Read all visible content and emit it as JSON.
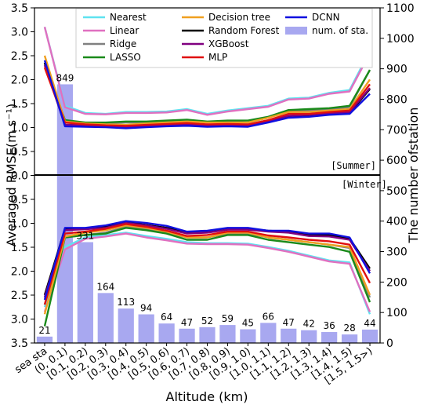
{
  "chart_data": {
    "type": "line",
    "categories": [
      "sea_sta",
      "(0, 0.1)",
      "[0.1, 0.2)",
      "[0.2, 0.3)",
      "[0.3, 0.4)",
      "[0.4, 0.5)",
      "[0.5, 0.6)",
      "[0.6, 0.7)",
      "[0.7, 0.8)",
      "[0.8, 0.9)",
      "[0.9, 1.0)",
      "[1.0, 1.1)",
      "[1.1, 1.2)",
      "[1.2, 1.3)",
      "[1.3, 1.4)",
      "[1.4, 1.5)",
      "[1.5, 1.5>)"
    ],
    "xlabel": "Altitude (km)",
    "ylabel": "Averaged RMSE(m s⁻¹)",
    "y2label": "The number ofstation",
    "summer_label": "[Summer]",
    "winter_label": "[Winter]",
    "rmse_ticks": [
      "3.5",
      "3.0",
      "2.5",
      "2.0",
      "1.5",
      "1.0",
      "0.5",
      "0.0",
      "0.5",
      "1.0",
      "1.5",
      "2.0",
      "2.5",
      "3.0",
      "3.5"
    ],
    "station_ticks": [
      "0",
      "100",
      "200",
      "300",
      "400",
      "500",
      "600",
      "700",
      "800",
      "900",
      "1000",
      "1100"
    ],
    "ylim_rmse": [
      0,
      3.5
    ],
    "ylim_stations": [
      0,
      1100
    ],
    "legend_position": "top",
    "stations": {
      "name": "num. of sta.",
      "color": "#a8a8f0",
      "values": [
        21,
        849,
        331,
        164,
        113,
        94,
        64,
        47,
        52,
        59,
        45,
        66,
        47,
        42,
        36,
        28,
        44
      ]
    },
    "summer": [
      {
        "name": "Nearest",
        "color": "#5fe3f0",
        "values": [
          3.1,
          1.45,
          1.3,
          1.28,
          1.32,
          1.32,
          1.33,
          1.38,
          1.28,
          1.35,
          1.4,
          1.45,
          1.6,
          1.62,
          1.72,
          1.78,
          2.6
        ]
      },
      {
        "name": "Linear",
        "color": "#e070c0",
        "values": [
          3.1,
          1.42,
          1.28,
          1.27,
          1.3,
          1.3,
          1.31,
          1.36,
          1.26,
          1.33,
          1.38,
          1.43,
          1.58,
          1.6,
          1.7,
          1.75,
          2.55
        ]
      },
      {
        "name": "Ridge",
        "color": "#808080",
        "values": [
          2.35,
          1.1,
          1.08,
          1.08,
          1.1,
          1.1,
          1.12,
          1.15,
          1.1,
          1.12,
          1.1,
          1.2,
          1.35,
          1.35,
          1.38,
          1.42,
          2.2
        ]
      },
      {
        "name": "LASSO",
        "color": "#1a8a1a",
        "values": [
          2.35,
          1.15,
          1.1,
          1.1,
          1.12,
          1.12,
          1.14,
          1.16,
          1.12,
          1.14,
          1.14,
          1.22,
          1.36,
          1.38,
          1.4,
          1.45,
          2.2
        ]
      },
      {
        "name": "Decision tree",
        "color": "#f0a020",
        "values": [
          2.5,
          1.12,
          1.08,
          1.06,
          1.05,
          1.08,
          1.1,
          1.12,
          1.1,
          1.1,
          1.1,
          1.2,
          1.32,
          1.32,
          1.35,
          1.38,
          2.0
        ]
      },
      {
        "name": "Random Forest",
        "color": "#000000",
        "values": [
          2.35,
          1.05,
          1.04,
          1.02,
          1.0,
          1.02,
          1.04,
          1.05,
          1.03,
          1.04,
          1.03,
          1.12,
          1.22,
          1.24,
          1.28,
          1.3,
          1.8
        ]
      },
      {
        "name": "XGBoost",
        "color": "#800080",
        "values": [
          2.3,
          1.05,
          1.04,
          1.03,
          1.01,
          1.03,
          1.05,
          1.06,
          1.04,
          1.05,
          1.04,
          1.13,
          1.24,
          1.26,
          1.29,
          1.32,
          1.82
        ]
      },
      {
        "name": "MLP",
        "color": "#e01010",
        "values": [
          2.25,
          1.1,
          1.06,
          1.04,
          1.03,
          1.05,
          1.07,
          1.09,
          1.06,
          1.07,
          1.06,
          1.15,
          1.28,
          1.28,
          1.32,
          1.35,
          1.9
        ]
      },
      {
        "name": "DCNN",
        "color": "#1010e0",
        "values": [
          2.4,
          1.02,
          1.01,
          1.0,
          0.98,
          1.0,
          1.02,
          1.03,
          1.01,
          1.02,
          1.01,
          1.1,
          1.2,
          1.22,
          1.26,
          1.28,
          1.7
        ]
      }
    ],
    "winter": [
      {
        "name": "Nearest",
        "color": "#5fe3f0",
        "values": [
          2.75,
          1.5,
          1.3,
          1.25,
          1.2,
          1.27,
          1.33,
          1.4,
          1.42,
          1.42,
          1.43,
          1.5,
          1.58,
          1.68,
          1.78,
          1.82,
          2.9
        ]
      },
      {
        "name": "Linear",
        "color": "#e070c0",
        "values": [
          2.85,
          1.55,
          1.33,
          1.28,
          1.22,
          1.3,
          1.36,
          1.43,
          1.44,
          1.44,
          1.45,
          1.52,
          1.6,
          1.7,
          1.8,
          1.85,
          2.85
        ]
      },
      {
        "name": "Ridge",
        "color": "#808080",
        "values": [
          2.7,
          1.3,
          1.25,
          1.2,
          1.08,
          1.12,
          1.2,
          1.3,
          1.3,
          1.22,
          1.22,
          1.3,
          1.35,
          1.4,
          1.45,
          1.52,
          2.55
        ]
      },
      {
        "name": "LASSO",
        "color": "#1a8a1a",
        "values": [
          3.15,
          1.3,
          1.25,
          1.22,
          1.1,
          1.15,
          1.22,
          1.35,
          1.35,
          1.25,
          1.25,
          1.35,
          1.4,
          1.45,
          1.5,
          1.6,
          2.65
        ]
      },
      {
        "name": "Decision tree",
        "color": "#f0a020",
        "values": [
          2.9,
          1.28,
          1.2,
          1.15,
          1.05,
          1.1,
          1.18,
          1.3,
          1.3,
          1.2,
          1.2,
          1.3,
          1.35,
          1.4,
          1.45,
          1.5,
          2.5
        ]
      },
      {
        "name": "Random Forest",
        "color": "#000000",
        "values": [
          2.5,
          1.12,
          1.12,
          1.08,
          0.98,
          1.04,
          1.1,
          1.2,
          1.18,
          1.12,
          1.12,
          1.16,
          1.18,
          1.25,
          1.25,
          1.32,
          1.95
        ]
      },
      {
        "name": "XGBoost",
        "color": "#800080",
        "values": [
          2.55,
          1.15,
          1.13,
          1.1,
          1.0,
          1.05,
          1.12,
          1.22,
          1.2,
          1.14,
          1.14,
          1.18,
          1.2,
          1.27,
          1.28,
          1.35,
          2.0
        ]
      },
      {
        "name": "MLP",
        "color": "#e01010",
        "values": [
          2.7,
          1.22,
          1.18,
          1.12,
          1.02,
          1.08,
          1.16,
          1.27,
          1.25,
          1.18,
          1.18,
          1.26,
          1.3,
          1.35,
          1.38,
          1.45,
          2.25
        ]
      },
      {
        "name": "DCNN",
        "color": "#1010e0",
        "values": [
          2.6,
          1.1,
          1.1,
          1.05,
          0.96,
          1.0,
          1.06,
          1.18,
          1.16,
          1.1,
          1.1,
          1.16,
          1.16,
          1.22,
          1.22,
          1.3,
          2.05
        ]
      }
    ]
  }
}
